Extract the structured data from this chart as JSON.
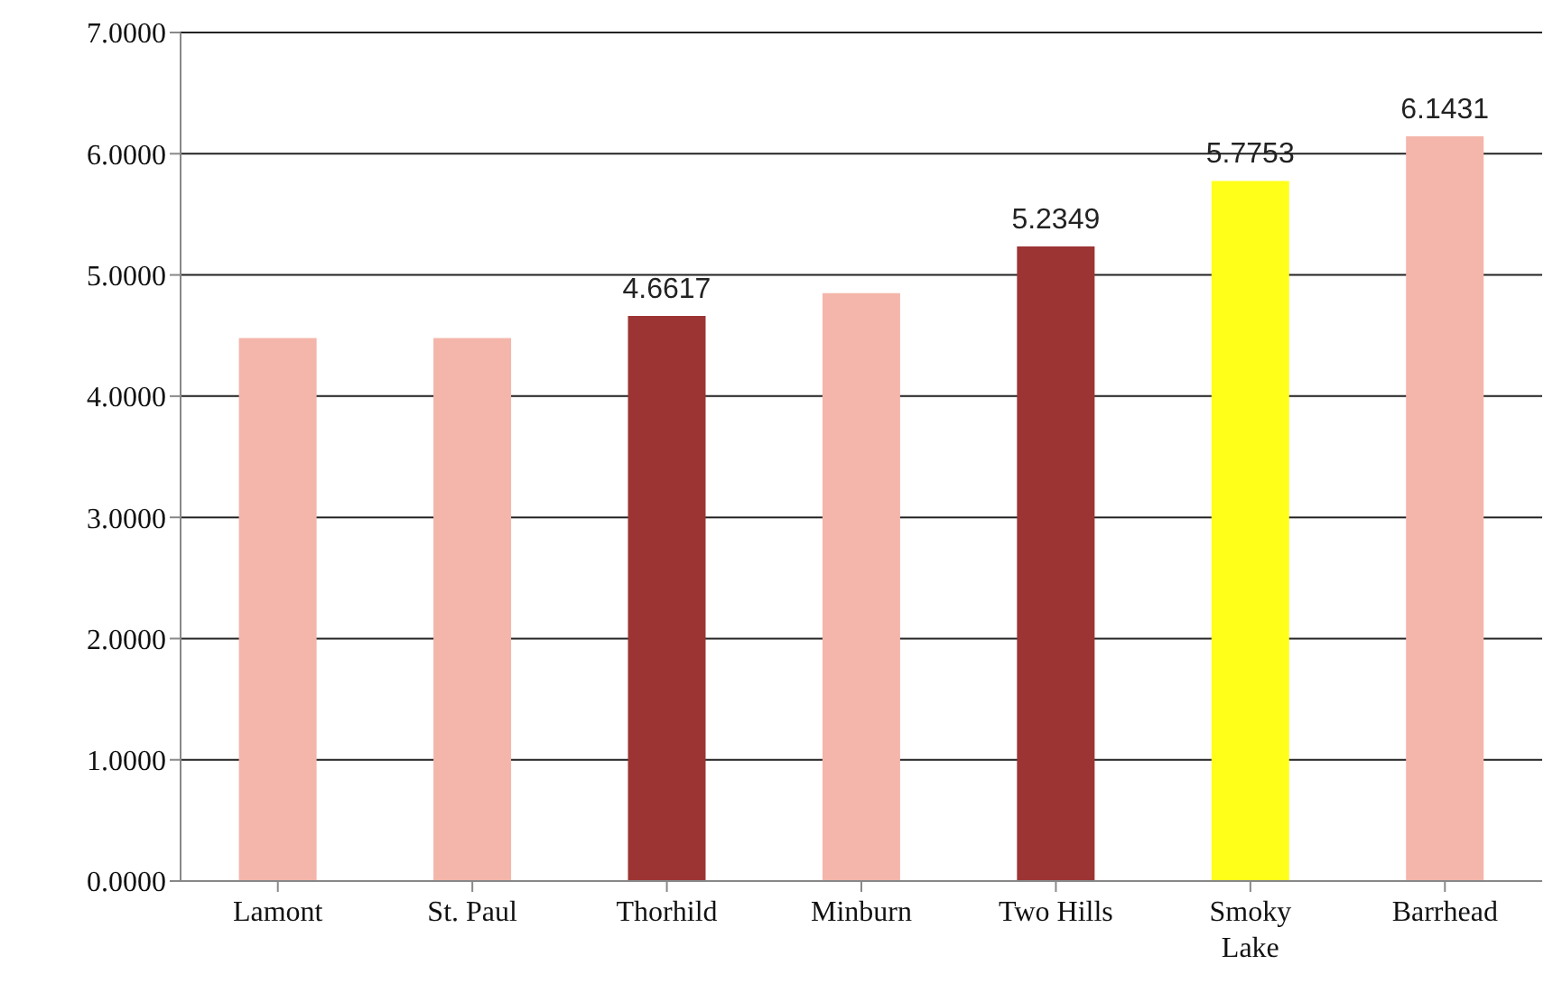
{
  "chart_data": {
    "type": "bar",
    "categories": [
      "Lamont",
      "St. Paul",
      "Thorhild",
      "Minburn",
      "Two Hills",
      "Smoky Lake",
      "Barrhead"
    ],
    "values": [
      4.48,
      4.48,
      4.6617,
      4.85,
      5.2349,
      5.7753,
      6.1431
    ],
    "colors": [
      "#f4b6aa",
      "#f4b6aa",
      "#9c3434",
      "#f4b6aa",
      "#9c3434",
      "#ffff1a",
      "#f4b6aa"
    ],
    "value_labels": [
      null,
      null,
      "4.6617",
      null,
      "5.2349",
      "5.7753",
      "6.1431"
    ],
    "ylim": [
      0,
      7
    ],
    "yticks": [
      {
        "value": 0,
        "label": "0.0000"
      },
      {
        "value": 1,
        "label": "1.0000"
      },
      {
        "value": 2,
        "label": "2.0000"
      },
      {
        "value": 3,
        "label": "3.0000"
      },
      {
        "value": 4,
        "label": "4.0000"
      },
      {
        "value": 5,
        "label": "5.0000"
      },
      {
        "value": 6,
        "label": "6.0000"
      },
      {
        "value": 7,
        "label": "7.0000"
      }
    ],
    "grid": "y"
  }
}
